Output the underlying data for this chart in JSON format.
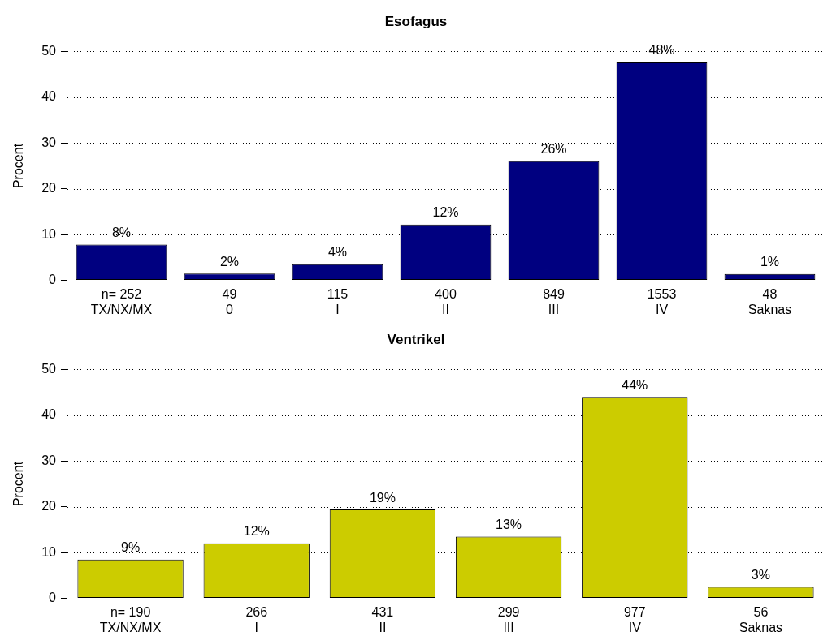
{
  "chart_data": [
    {
      "type": "bar",
      "title": "Esofagus",
      "ylabel": "Procent",
      "categories": [
        "n= 252\nTX/NX/MX",
        "49\n0",
        "115\nI",
        "400\nII",
        "849\nIII",
        "1553\nIV",
        "48\nSaknas"
      ],
      "values": [
        7.8,
        1.5,
        3.5,
        12.2,
        26,
        47.6,
        1.4
      ],
      "value_labels": [
        "8%",
        "2%",
        "4%",
        "12%",
        "26%",
        "48%",
        "1%"
      ],
      "color": "#000080",
      "ylim": [
        0,
        50
      ],
      "yticks": [
        0,
        10,
        20,
        30,
        40,
        50
      ],
      "grid": "y"
    },
    {
      "type": "bar",
      "title": "Ventrikel",
      "ylabel": "Procent",
      "categories": [
        "n= 190\nTX/NX/MX",
        "266\nI",
        "431\nII",
        "299\nIII",
        "977\nIV",
        "56\nSaknas"
      ],
      "values": [
        8.5,
        12,
        19.4,
        13.5,
        44,
        2.5
      ],
      "value_labels": [
        "9%",
        "12%",
        "19%",
        "13%",
        "44%",
        "3%"
      ],
      "color": "#cccc00",
      "ylim": [
        0,
        50
      ],
      "yticks": [
        0,
        10,
        20,
        30,
        40,
        50
      ],
      "grid": "y"
    }
  ]
}
